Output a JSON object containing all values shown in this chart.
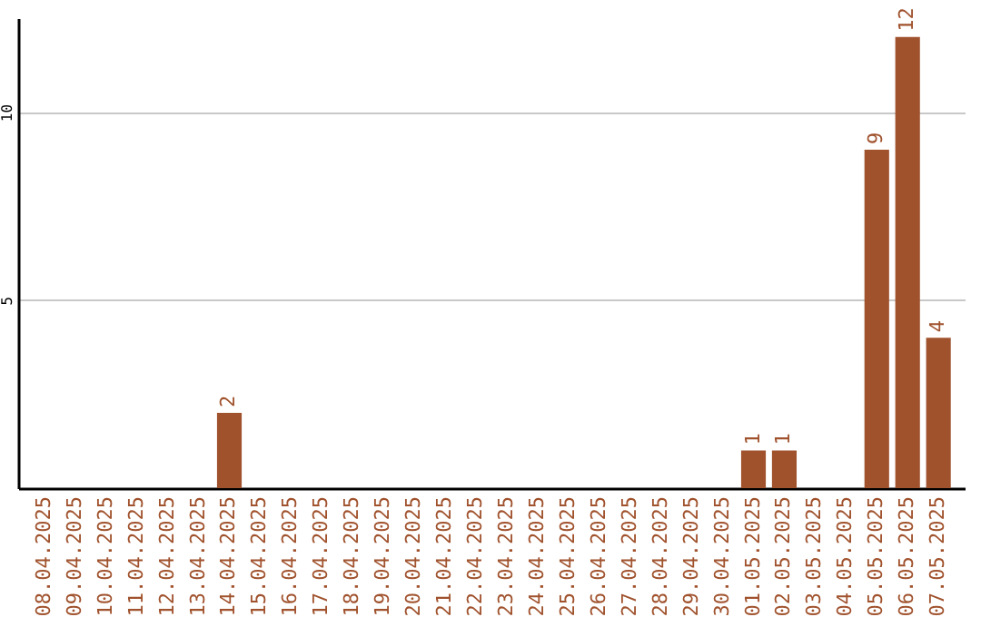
{
  "chart_data": {
    "type": "bar",
    "categories": [
      "08.04.2025",
      "09.04.2025",
      "10.04.2025",
      "11.04.2025",
      "12.04.2025",
      "13.04.2025",
      "14.04.2025",
      "15.04.2025",
      "16.04.2025",
      "17.04.2025",
      "18.04.2025",
      "19.04.2025",
      "20.04.2025",
      "21.04.2025",
      "22.04.2025",
      "23.04.2025",
      "24.04.2025",
      "25.04.2025",
      "26.04.2025",
      "27.04.2025",
      "28.04.2025",
      "29.04.2025",
      "30.04.2025",
      "01.05.2025",
      "02.05.2025",
      "03.05.2025",
      "04.05.2025",
      "05.05.2025",
      "06.05.2025",
      "07.05.2025"
    ],
    "values": [
      0,
      0,
      0,
      0,
      0,
      0,
      2,
      0,
      0,
      0,
      0,
      0,
      0,
      0,
      0,
      0,
      0,
      0,
      0,
      0,
      0,
      0,
      0,
      1,
      1,
      0,
      0,
      9,
      12,
      4
    ],
    "value_labels": [
      null,
      null,
      null,
      null,
      null,
      null,
      "2",
      null,
      null,
      null,
      null,
      null,
      null,
      null,
      null,
      null,
      null,
      null,
      null,
      null,
      null,
      null,
      null,
      "1",
      "1",
      null,
      null,
      "9",
      "12",
      "4"
    ],
    "color": "#a0522d",
    "ylim": [
      0,
      12.5
    ],
    "yticks": [
      5,
      10
    ],
    "grid": "y"
  }
}
